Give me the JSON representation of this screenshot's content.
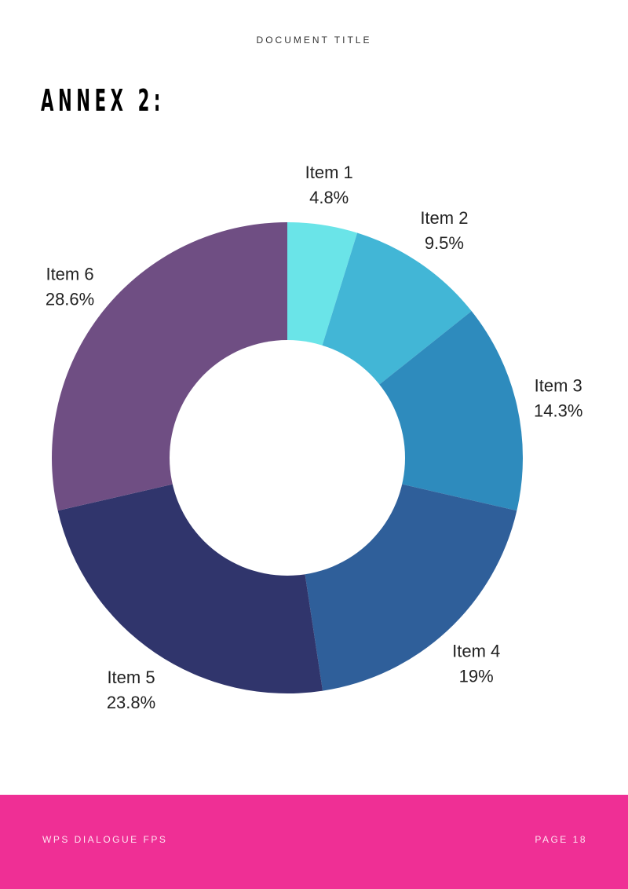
{
  "header": {
    "document_title": "DOCUMENT TITLE"
  },
  "main": {
    "heading": "ANNEX 2:"
  },
  "chart_data": {
    "type": "pie",
    "donut": true,
    "title": "",
    "categories": [
      "Item 1",
      "Item 2",
      "Item 3",
      "Item 4",
      "Item 5",
      "Item 6"
    ],
    "values": [
      4.8,
      9.5,
      14.3,
      19,
      23.8,
      28.6
    ],
    "value_labels": [
      "4.8%",
      "9.5%",
      "14.3%",
      "19%",
      "23.8%",
      "28.6%"
    ],
    "colors": [
      "#6ae4e8",
      "#42b6d6",
      "#2e8bbd",
      "#2f5f9a",
      "#30356c",
      "#6f4e83"
    ],
    "legend": "none"
  },
  "footer": {
    "left_text": "WPS DIALOGUE FPS",
    "right_text": "PAGE 18",
    "background_color": "#ef2f95"
  }
}
